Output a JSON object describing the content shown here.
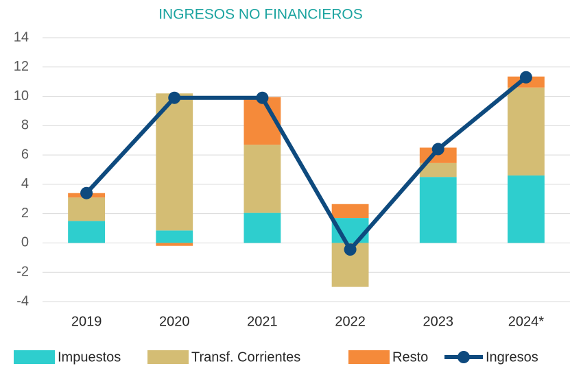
{
  "chart_data": {
    "type": "bar",
    "title": "INGRESOS NO FINANCIEROS",
    "categories": [
      "2019",
      "2020",
      "2021",
      "2022",
      "2023",
      "2024*"
    ],
    "series": [
      {
        "name": "Impuestos",
        "type": "bar",
        "color": "#2ecece",
        "values": [
          1.5,
          0.85,
          2.05,
          1.7,
          4.5,
          4.6
        ]
      },
      {
        "name": "Transf. Corrientes",
        "type": "bar",
        "color": "#d4bd74",
        "values": [
          1.6,
          9.35,
          4.65,
          -3.0,
          0.95,
          6.0
        ]
      },
      {
        "name": "Resto",
        "type": "bar",
        "color": "#f58a3a",
        "values": [
          0.3,
          -0.2,
          3.25,
          0.95,
          1.05,
          0.75
        ]
      },
      {
        "name": "Ingresos",
        "type": "line",
        "color": "#0e4a7e",
        "values": [
          3.4,
          9.9,
          9.9,
          -0.45,
          6.4,
          11.3
        ]
      }
    ],
    "ylim": [
      -4,
      14
    ],
    "yticks": [
      -4,
      -2,
      0,
      2,
      4,
      6,
      8,
      10,
      12,
      14
    ],
    "grid": true,
    "stacked": true,
    "legend": "bottom"
  }
}
